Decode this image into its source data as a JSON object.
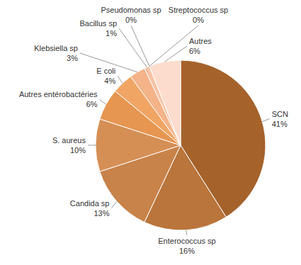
{
  "chart_data": {
    "type": "pie",
    "categories": [
      "SCN",
      "Enterococcus sp",
      "Candida sp",
      "S. aureus",
      "Autres entérobactéries",
      "E coli",
      "Klebsiella sp",
      "Bacillus sp",
      "Pseudomonas sp",
      "Streptococcus sp",
      "Autres"
    ],
    "values": [
      41,
      16,
      13,
      10,
      6,
      4,
      3,
      1,
      0,
      0,
      6
    ],
    "value_labels": [
      "41%",
      "16%",
      "13%",
      "10%",
      "6%",
      "4%",
      "3%",
      "1%",
      "0%",
      "0%",
      "6%"
    ],
    "colors": [
      "#a5622b",
      "#b9753b",
      "#c8834a",
      "#d58f55",
      "#e69650",
      "#f0a564",
      "#f4b388",
      "#f7c2a4",
      "#f9cdb6",
      "#fad3bf",
      "#fcdccd"
    ],
    "data_labels": true
  }
}
